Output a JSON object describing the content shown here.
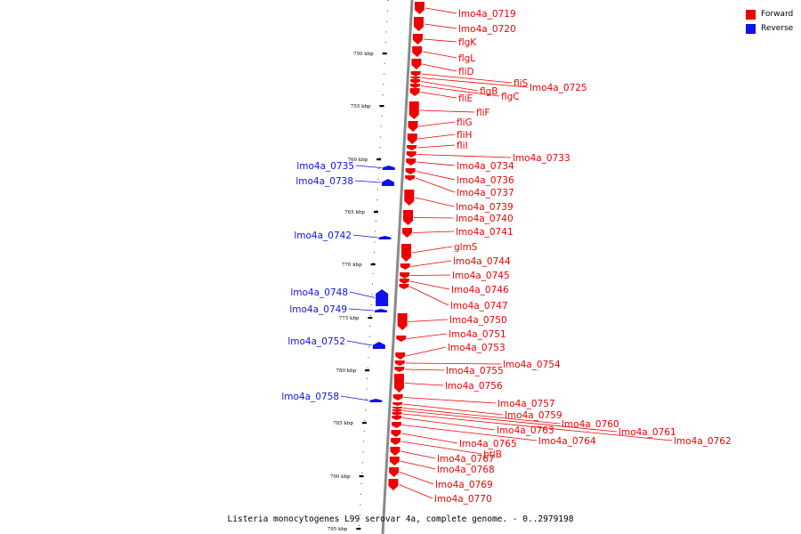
{
  "caption": "Listeria monocytogenes L99 serovar 4a, complete genome. - 0..2979198",
  "legend": [
    {
      "label": "Forward",
      "color": "#ee0000"
    },
    {
      "label": "Reverse",
      "color": "#1010ee"
    }
  ],
  "scale_ticks": [
    "750 kbp",
    "755 kbp",
    "760 kbp",
    "765 kbp",
    "770 kbp",
    "775 kbp",
    "780 kbp",
    "785 kbp",
    "790 kbp",
    "795 kbp"
  ],
  "forward_genes": [
    "lmo4a_0719",
    "lmo4a_0720",
    "flgK",
    "flgL",
    "fliD",
    "fliS",
    "lmo4a_0725",
    "flgB",
    "flgC",
    "fliE",
    "fliF",
    "fliG",
    "fliH",
    "fliI",
    "lmo4a_0733",
    "lmo4a_0734",
    "lmo4a_0736",
    "lmo4a_0737",
    "lmo4a_0739",
    "lmo4a_0740",
    "lmo4a_0741",
    "glmS",
    "lmo4a_0744",
    "lmo4a_0745",
    "lmo4a_0746",
    "lmo4a_0747",
    "lmo4a_0750",
    "lmo4a_0751",
    "lmo4a_0753",
    "lmo4a_0754",
    "lmo4a_0755",
    "lmo4a_0756",
    "lmo4a_0757",
    "lmo4a_0759",
    "lmo4a_0760",
    "lmo4a_0761",
    "lmo4a_0762",
    "lmo4a_0763",
    "lmo4a_0764",
    "lmo4a_0765",
    "btlB",
    "lmo4a_0767",
    "lmo4a_0768",
    "lmo4a_0769",
    "lmo4a_0770"
  ],
  "reverse_genes": [
    "lmo4a_0735",
    "lmo4a_0738",
    "lmo4a_0742",
    "lmo4a_0748",
    "lmo4a_0749",
    "lmo4a_0752",
    "lmo4a_0758"
  ]
}
